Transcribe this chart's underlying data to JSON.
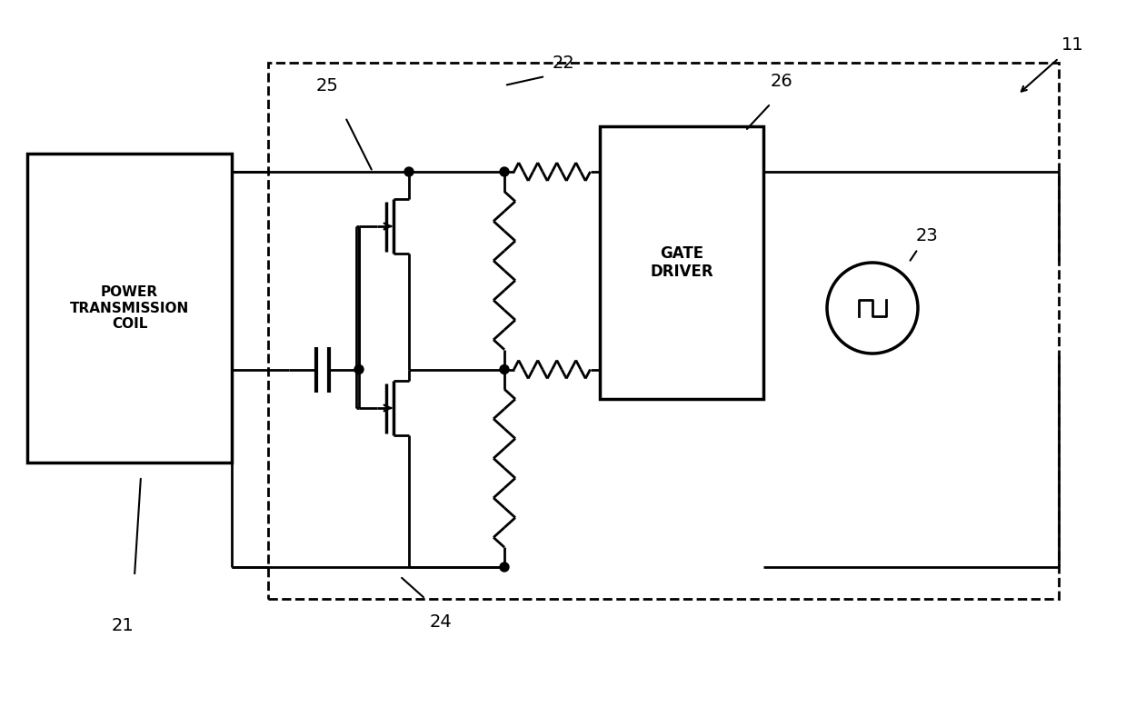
{
  "bg_color": "#ffffff",
  "lw": 2.0,
  "fig_width": 12.39,
  "fig_height": 7.89,
  "dpi": 100,
  "xlim": [
    0,
    1239
  ],
  "ylim": [
    0,
    789
  ]
}
